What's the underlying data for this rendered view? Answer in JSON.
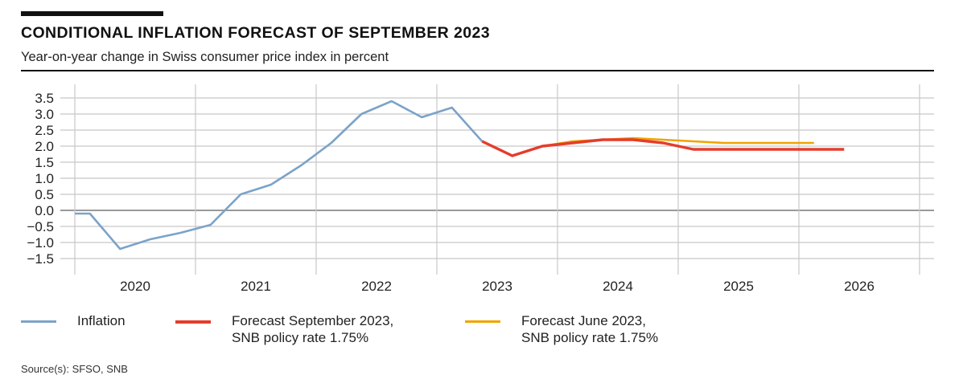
{
  "header": {
    "title": "CONDITIONAL INFLATION FORECAST OF SEPTEMBER 2023",
    "subtitle": "Year-on-year change in Swiss consumer price index in percent"
  },
  "footer": {
    "source": "Source(s): SFSO, SNB"
  },
  "colors": {
    "inflation": "#7ba3c8",
    "forecast_sep": "#e53c2c",
    "forecast_jun": "#f0a400",
    "grid": "#c8c8c8",
    "zero_line": "#999999"
  },
  "chart_data": {
    "type": "line",
    "title": "CONDITIONAL INFLATION FORECAST OF SEPTEMBER 2023",
    "subtitle": "Year-on-year change in Swiss consumer price index in percent",
    "xlabel": "",
    "ylabel": "",
    "x_unit": "quarter",
    "xlim": [
      2020.0,
      2027.0
    ],
    "ylim": [
      -1.75,
      3.75
    ],
    "y_ticks": [
      3.5,
      3.0,
      2.5,
      2.0,
      1.5,
      1.0,
      0.5,
      0.0,
      -0.5,
      -1.0,
      -1.5
    ],
    "y_tick_labels": [
      "3.5",
      "3.0",
      "2.5",
      "2.0",
      "1.5",
      "1.0",
      "0.5",
      "0.0",
      "−0.5",
      "−1.0",
      "−1.5"
    ],
    "x_tick_labels": [
      "2020",
      "2021",
      "2022",
      "2023",
      "2024",
      "2025",
      "2026"
    ],
    "grid": true,
    "legend_position": "bottom",
    "series": [
      {
        "name": "Inflation",
        "legend_lines": [
          "Inflation"
        ],
        "color_key": "inflation",
        "points": [
          {
            "q": "2019Q4",
            "v": -0.1
          },
          {
            "q": "2020Q1",
            "v": -0.1
          },
          {
            "q": "2020Q2",
            "v": -1.2
          },
          {
            "q": "2020Q3",
            "v": -0.9
          },
          {
            "q": "2020Q4",
            "v": -0.7
          },
          {
            "q": "2021Q1",
            "v": -0.45
          },
          {
            "q": "2021Q2",
            "v": 0.5
          },
          {
            "q": "2021Q3",
            "v": 0.8
          },
          {
            "q": "2021Q4",
            "v": 1.4
          },
          {
            "q": "2022Q1",
            "v": 2.1
          },
          {
            "q": "2022Q2",
            "v": 3.0
          },
          {
            "q": "2022Q3",
            "v": 3.4
          },
          {
            "q": "2022Q4",
            "v": 2.9
          },
          {
            "q": "2023Q1",
            "v": 3.2
          },
          {
            "q": "2023Q2",
            "v": 2.15
          }
        ]
      },
      {
        "name": "Forecast June 2023, SNB policy rate 1.75%",
        "legend_lines": [
          "Forecast June 2023,",
          "SNB policy rate 1.75%"
        ],
        "color_key": "forecast_jun",
        "points": [
          {
            "q": "2023Q3",
            "v": 1.7
          },
          {
            "q": "2023Q4",
            "v": 2.0
          },
          {
            "q": "2024Q1",
            "v": 2.15
          },
          {
            "q": "2024Q2",
            "v": 2.2
          },
          {
            "q": "2024Q3",
            "v": 2.25
          },
          {
            "q": "2024Q4",
            "v": 2.2
          },
          {
            "q": "2025Q1",
            "v": 2.15
          },
          {
            "q": "2025Q2",
            "v": 2.1
          },
          {
            "q": "2025Q3",
            "v": 2.1
          },
          {
            "q": "2025Q4",
            "v": 2.1
          },
          {
            "q": "2026Q1",
            "v": 2.1
          }
        ]
      },
      {
        "name": "Forecast September 2023, SNB policy rate 1.75%",
        "legend_lines": [
          "Forecast September 2023,",
          "SNB policy rate 1.75%"
        ],
        "color_key": "forecast_sep",
        "points": [
          {
            "q": "2023Q2",
            "v": 2.15
          },
          {
            "q": "2023Q3",
            "v": 1.7
          },
          {
            "q": "2023Q4",
            "v": 2.0
          },
          {
            "q": "2024Q1",
            "v": 2.1
          },
          {
            "q": "2024Q2",
            "v": 2.2
          },
          {
            "q": "2024Q3",
            "v": 2.2
          },
          {
            "q": "2024Q4",
            "v": 2.1
          },
          {
            "q": "2025Q1",
            "v": 1.9
          },
          {
            "q": "2025Q2",
            "v": 1.9
          },
          {
            "q": "2025Q3",
            "v": 1.9
          },
          {
            "q": "2025Q4",
            "v": 1.9
          },
          {
            "q": "2026Q1",
            "v": 1.9
          },
          {
            "q": "2026Q2",
            "v": 1.9
          }
        ]
      }
    ],
    "legend_order": [
      0,
      2,
      1
    ]
  }
}
